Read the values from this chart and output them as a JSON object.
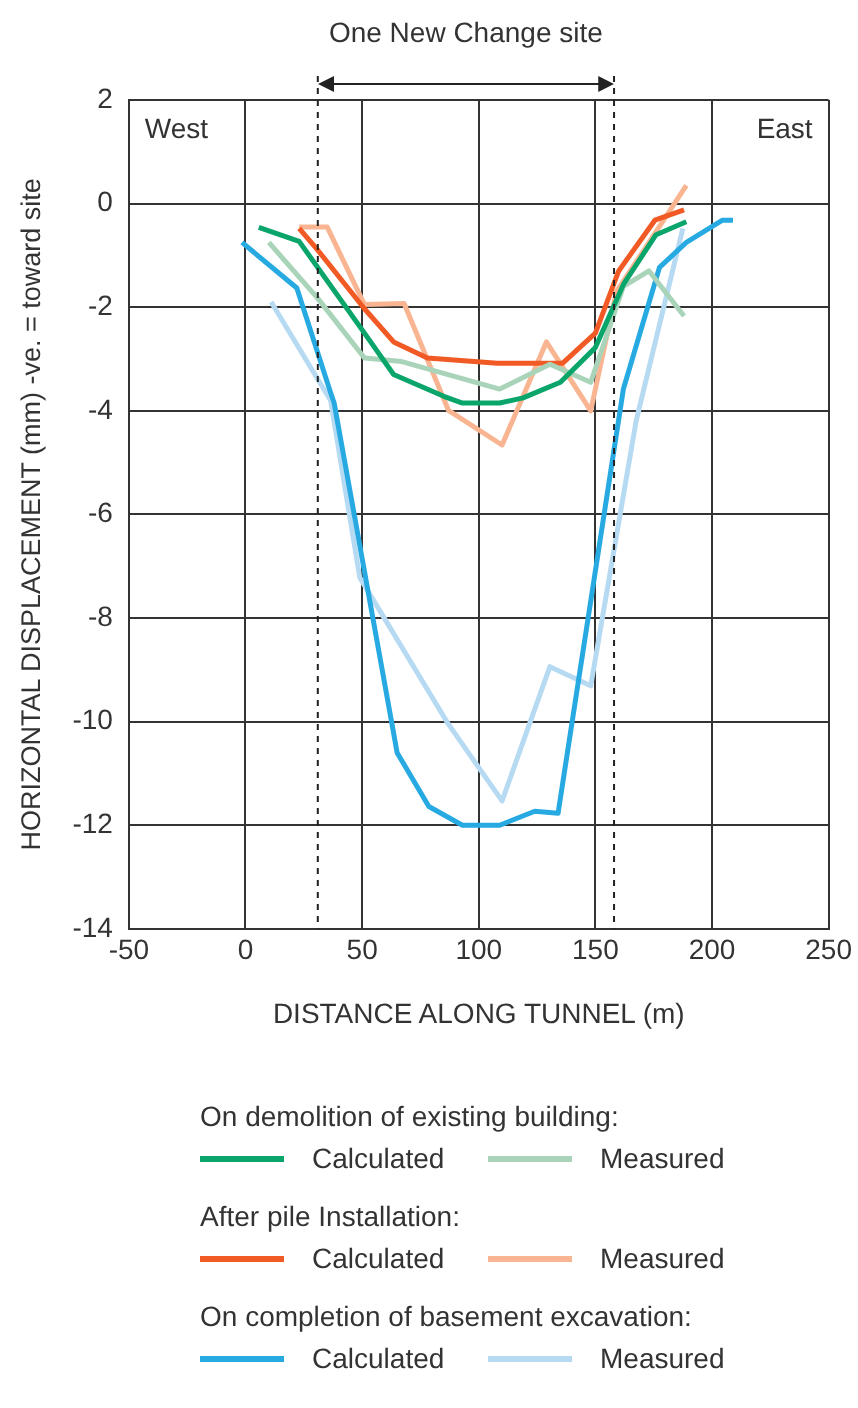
{
  "chart_data": {
    "type": "line",
    "xlabel": "DISTANCE ALONG TUNNEL (m)",
    "ylabel": "HORIZONTAL DISPLACEMENT (mm) -ve. = toward site",
    "xlim": [
      -50,
      250
    ],
    "xticks": [
      -50,
      0,
      50,
      100,
      150,
      200,
      250
    ],
    "ylim": [
      -14,
      2
    ],
    "yticks": [
      -14,
      -12,
      -10,
      -8,
      -6,
      -4,
      -2,
      0,
      2
    ],
    "grid": true,
    "legend": "bottom",
    "marker": "none",
    "line_style": "solid",
    "ref_lines": [
      {
        "axis": "x",
        "value": 31,
        "label": null,
        "color": "#222222",
        "line_style": "dashed"
      },
      {
        "axis": "x",
        "value": 158,
        "label": null,
        "color": "#222222",
        "line_style": "dashed"
      }
    ],
    "annotations": [
      "One New Change site",
      "West",
      "East",
      "On demolition of existing building:",
      "After pile Installation:",
      "On completion of basement excavation:"
    ],
    "series": [
      {
        "name": "Calculated",
        "color": "#0aa56a",
        "x": [
          5.7,
          23,
          51,
          63.5,
          85,
          93,
          109,
          119,
          135,
          150,
          162,
          176,
          189
        ],
        "values": [
          -0.46,
          -0.73,
          -2.5,
          -3.3,
          -3.72,
          -3.85,
          -3.85,
          -3.75,
          -3.45,
          -2.78,
          -1.56,
          -0.6,
          -0.35
        ]
      },
      {
        "name": "Measured",
        "color": "#aad4b9",
        "x": [
          10,
          31,
          51,
          67,
          109,
          130.5,
          148,
          162,
          173,
          188
        ],
        "values": [
          -0.75,
          -1.83,
          -2.98,
          -3.05,
          -3.58,
          -3.1,
          -3.45,
          -1.6,
          -1.3,
          -2.17
        ]
      },
      {
        "name": "Calculated",
        "color": "#f15a24",
        "x": [
          23,
          31,
          51,
          63.5,
          78,
          108,
          136,
          150,
          160,
          175.5,
          188
        ],
        "values": [
          -0.48,
          -0.9,
          -2.03,
          -2.67,
          -2.98,
          -3.08,
          -3.08,
          -2.5,
          -1.3,
          -0.32,
          -0.12
        ]
      },
      {
        "name": "Measured",
        "color": "#f9b591",
        "x": [
          23,
          35,
          51,
          68,
          87,
          110,
          129,
          148,
          159,
          173,
          189
        ],
        "values": [
          -0.45,
          -0.45,
          -1.95,
          -1.93,
          -3.99,
          -4.66,
          -2.67,
          -4.0,
          -1.7,
          -0.75,
          0.35
        ]
      },
      {
        "name": "Calculated",
        "color": "#27aae1",
        "x": [
          -1.5,
          22,
          36.5,
          38,
          65,
          78.6,
          93,
          109,
          124,
          134,
          162,
          177.5,
          189,
          204.5,
          209
        ],
        "values": [
          -0.75,
          -1.63,
          -3.65,
          -3.85,
          -10.6,
          -11.64,
          -12.0,
          -12.0,
          -11.73,
          -11.77,
          -3.58,
          -1.23,
          -0.75,
          -0.32,
          -0.32
        ]
      },
      {
        "name": "Measured",
        "color": "#b7daf3",
        "x": [
          11,
          36.5,
          49,
          87,
          110,
          130.5,
          148,
          167.5,
          187.5
        ],
        "values": [
          -1.9,
          -3.8,
          -7.22,
          -10.05,
          -11.53,
          -8.94,
          -9.31,
          -4.19,
          -0.48
        ]
      }
    ]
  }
}
